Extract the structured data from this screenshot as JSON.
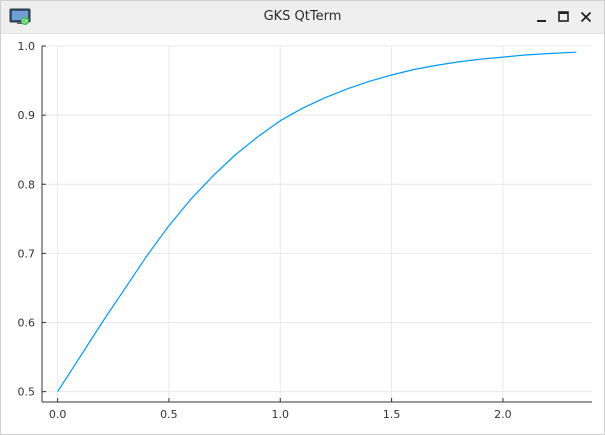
{
  "window": {
    "title": "GKS QtTerm",
    "icons": {
      "app": "qt-gks-app-icon",
      "minimize": "minimize-icon",
      "maximize": "maximize-icon",
      "close": "close-icon"
    }
  },
  "chart_data": {
    "type": "line",
    "title": "",
    "xlabel": "",
    "ylabel": "",
    "xlim": [
      -0.07,
      2.4
    ],
    "ylim": [
      0.485,
      1.0
    ],
    "grid": true,
    "legend": "none",
    "xticks": [
      0.0,
      0.5,
      1.0,
      1.5,
      2.0
    ],
    "xtick_labels": [
      "0.0",
      "0.5",
      "1.0",
      "1.5",
      "2.0"
    ],
    "yticks": [
      0.5,
      0.6,
      0.7,
      0.8,
      0.9,
      1.0
    ],
    "ytick_labels": [
      "0.5",
      "0.6",
      "0.7",
      "0.8",
      "0.9",
      "1.0"
    ],
    "series": [
      {
        "color": "#009af9",
        "x": [
          0.0,
          0.1,
          0.2,
          0.3,
          0.4,
          0.5,
          0.6,
          0.7,
          0.8,
          0.9,
          1.0,
          1.1,
          1.2,
          1.3,
          1.4,
          1.5,
          1.6,
          1.7,
          1.8,
          1.9,
          2.0,
          2.1,
          2.2,
          2.33
        ],
        "y": [
          0.5,
          0.55,
          0.6,
          0.648,
          0.696,
          0.74,
          0.779,
          0.813,
          0.843,
          0.869,
          0.892,
          0.91,
          0.925,
          0.938,
          0.949,
          0.958,
          0.966,
          0.972,
          0.977,
          0.981,
          0.984,
          0.987,
          0.989,
          0.991
        ]
      }
    ]
  }
}
